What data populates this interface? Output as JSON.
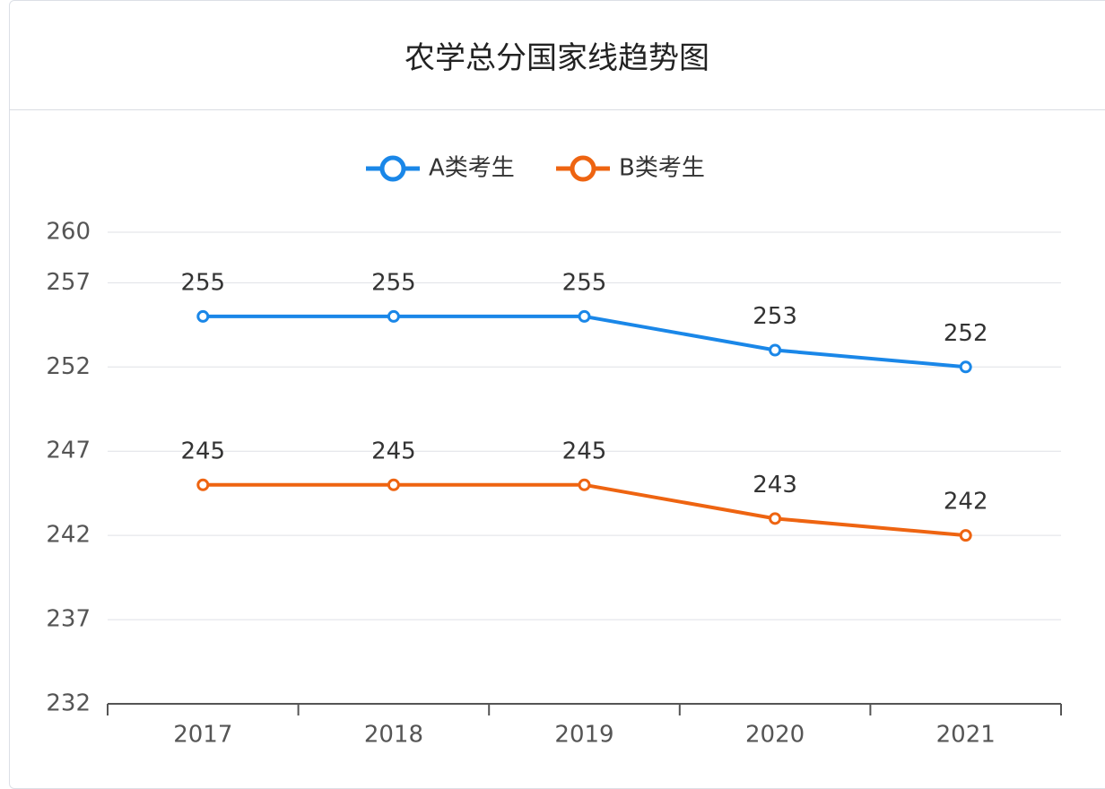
{
  "chart_data": {
    "type": "line",
    "title": "农学总分国家线趋势图",
    "categories": [
      "2017",
      "2018",
      "2019",
      "2020",
      "2021"
    ],
    "series": [
      {
        "name": "A类考生",
        "color": "#1a87e8",
        "values": [
          255,
          255,
          255,
          253,
          252
        ]
      },
      {
        "name": "B类考生",
        "color": "#ee6411",
        "values": [
          245,
          245,
          245,
          243,
          242
        ]
      }
    ],
    "ylim": [
      232,
      260
    ],
    "yticks": [
      232,
      237,
      242,
      247,
      252,
      257,
      260
    ],
    "grid": true,
    "legend": "top",
    "data_labels": true
  }
}
